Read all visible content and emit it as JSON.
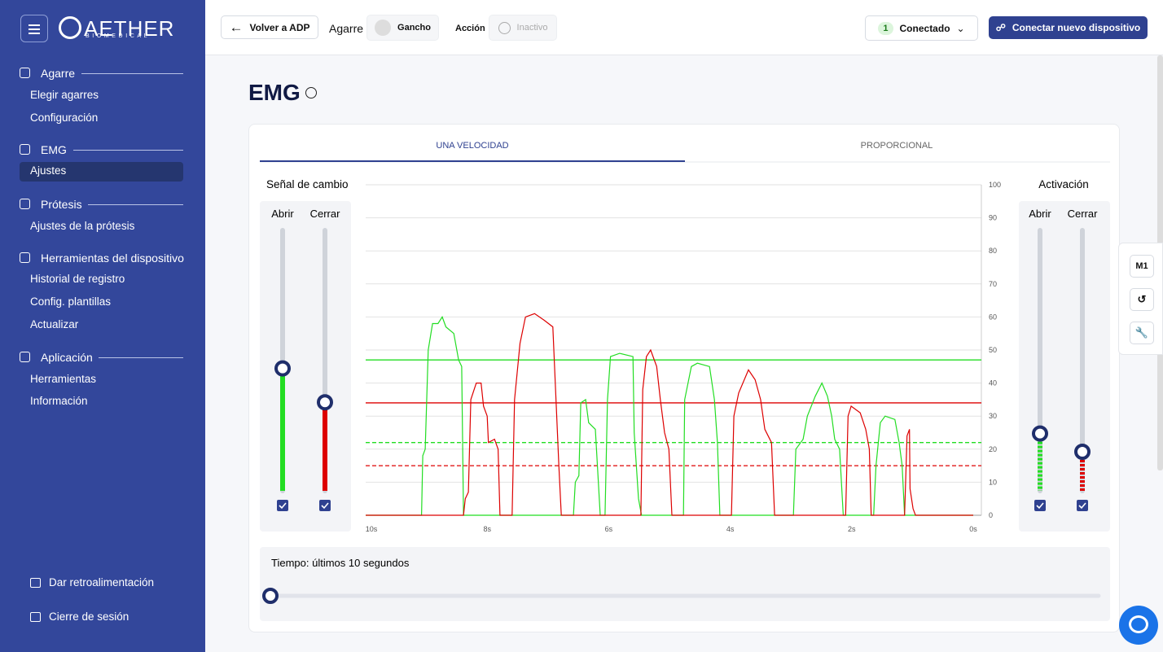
{
  "sidebar": {
    "brand": "AETHER",
    "brand_sub": "BIOMEDICAL",
    "sections": [
      {
        "title": "Agarre",
        "items": [
          "Elegir agarres",
          "Configuración"
        ]
      },
      {
        "title": "EMG",
        "items": [
          "Ajustes"
        ]
      },
      {
        "title": "Prótesis",
        "items": [
          "Ajustes de la prótesis"
        ]
      },
      {
        "title": "Herramientas del dispositivo",
        "items": [
          "Historial de registro",
          "Config. plantillas",
          "Actualizar"
        ]
      },
      {
        "title": "Aplicación",
        "items": [
          "Herramientas",
          "Información"
        ]
      }
    ],
    "footer": [
      "Dar retroalimentación",
      "Cierre de sesión"
    ]
  },
  "topbar": {
    "back": "Volver a ADP",
    "grip_label": "Agarre",
    "grip": "Gancho",
    "action_label": "Acción",
    "action": "Inactivo",
    "device_count": "1",
    "status": "Conectado",
    "connect": "Conectar nuevo dispositivo"
  },
  "side_tools": [
    "M1"
  ],
  "page": {
    "title": "EMG",
    "tabs": [
      "UNA VELOCIDAD",
      "PROPORCIONAL"
    ]
  },
  "chart_data": {
    "type": "line",
    "left_title": "Señal de cambio",
    "right_title": "Activación",
    "slider_labels": [
      "Abrir",
      "Cerrar"
    ],
    "xlim": [
      10,
      0
    ],
    "xticks": [
      {
        "value": 10,
        "label": "10s"
      },
      {
        "value": 8,
        "label": "8s"
      },
      {
        "value": 6,
        "label": "6s"
      },
      {
        "value": 4,
        "label": "4s"
      },
      {
        "value": 2,
        "label": "2s"
      },
      {
        "value": 0,
        "label": "0s"
      }
    ],
    "ylim": [
      0,
      100
    ],
    "yticks": [
      0,
      10,
      20,
      30,
      40,
      50,
      60,
      70,
      80,
      90,
      100
    ],
    "grid": true,
    "series": [
      {
        "color": "#22dd22",
        "x": [
          10,
          9.08,
          9.06,
          9.02,
          8.97,
          8.9,
          8.81,
          8.74,
          8.68,
          8.55,
          8.47,
          8.42,
          8.39,
          6.58,
          6.55,
          6.49,
          6.46,
          6.38,
          6.33,
          6.22,
          6.17,
          6.14,
          6.06,
          6.02,
          5.97,
          5.82,
          5.6,
          5.58,
          5.51,
          5.46,
          4.77,
          4.75,
          4.64,
          4.54,
          4.34,
          4.26,
          4.21,
          4.17,
          2.96,
          2.92,
          2.8,
          2.73,
          2.6,
          2.49,
          2.4,
          2.33,
          2.28,
          2.2,
          2.14,
          1.64,
          1.6,
          1.53,
          1.45,
          1.29,
          1.22,
          1.17,
          1.13,
          0
        ],
        "values": [
          0,
          0,
          18,
          20,
          50,
          58,
          58,
          60,
          57,
          55,
          47,
          45,
          0,
          0,
          10,
          12,
          34,
          35,
          28,
          26,
          10,
          0,
          0,
          35,
          48,
          49,
          48,
          25,
          5,
          0,
          0,
          35,
          45,
          46,
          45,
          35,
          22,
          0,
          0,
          20,
          23,
          30,
          36,
          40,
          36,
          30,
          23,
          20,
          0,
          0,
          15,
          28,
          30,
          29,
          22,
          15,
          0,
          0
        ]
      },
      {
        "color": "#dd0000",
        "x": [
          10,
          8.39,
          8.36,
          8.31,
          8.27,
          8.18,
          8.1,
          8.06,
          8,
          7.98,
          7.88,
          7.82,
          7.79,
          7.59,
          7.55,
          7.46,
          7.37,
          7.22,
          7.06,
          6.92,
          6.88,
          6.82,
          6.78,
          5.47,
          5.44,
          5.38,
          5.31,
          5.21,
          5.15,
          5.08,
          5.01,
          4.96,
          3.98,
          3.94,
          3.86,
          3.7,
          3.59,
          3.5,
          3.43,
          3.32,
          3.27,
          2.1,
          2.06,
          2.01,
          1.86,
          1.77,
          1.71,
          1.68,
          1.13,
          1.09,
          1.05,
          1.04,
          0.99,
          0.95,
          0
        ],
        "values": [
          0,
          0,
          5,
          7,
          35,
          40,
          40,
          33,
          30,
          22,
          23,
          20,
          0,
          0,
          35,
          52,
          60,
          61,
          59,
          57,
          40,
          15,
          0,
          0,
          38,
          48,
          50,
          45,
          35,
          25,
          20,
          0,
          0,
          30,
          37,
          44,
          41,
          35,
          26,
          22,
          0,
          0,
          30,
          33,
          31,
          26,
          20,
          0,
          0,
          24,
          26,
          8,
          2,
          0,
          0
        ]
      }
    ],
    "thresholds": [
      {
        "value": 47,
        "color": "#22dd22",
        "style": "solid"
      },
      {
        "value": 34,
        "color": "#dd0000",
        "style": "solid"
      },
      {
        "value": 22,
        "color": "#22dd22",
        "style": "dashed"
      },
      {
        "value": 15,
        "color": "#dd0000",
        "style": "dashed"
      }
    ],
    "time_label": "Tiempo: últimos 10 segundos"
  }
}
